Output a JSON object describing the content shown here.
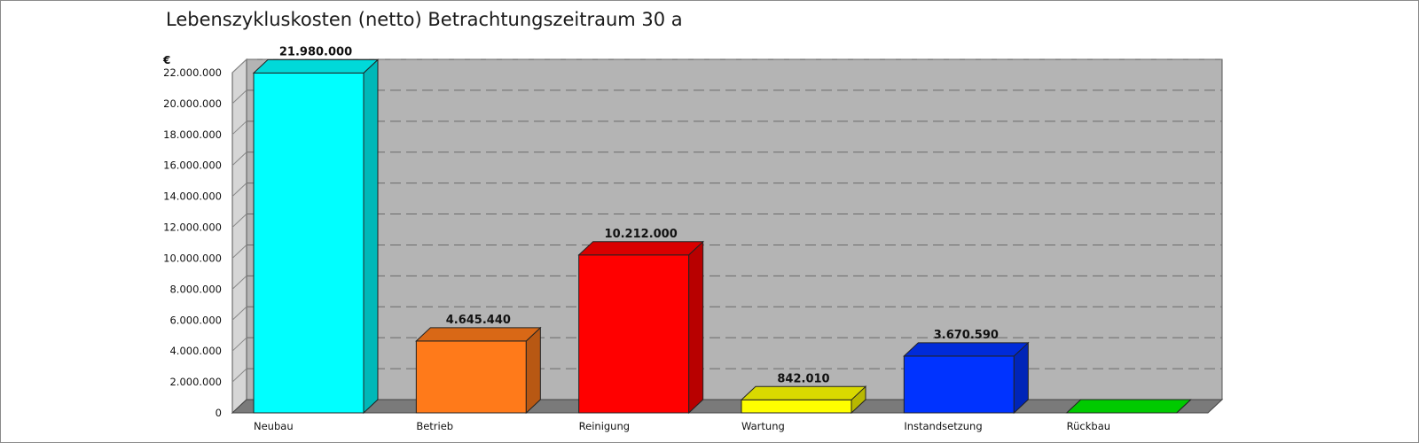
{
  "chart_data": {
    "type": "bar",
    "title": "Lebenszykluskosten (netto) Betrachtungszeitraum 30 a",
    "unit_label": "€",
    "categories": [
      "Neubau",
      "Betrieb",
      "Reinigung",
      "Wartung",
      "Instandsetzung",
      "Rückbau"
    ],
    "values": [
      21980000,
      4645440,
      10212000,
      842010,
      3670590,
      0
    ],
    "data_labels": [
      "21.980.000",
      "4.645.440",
      "10.212.000",
      "842.010",
      "3.670.590",
      ""
    ],
    "colors": [
      "#00ffff",
      "#ff7a1a",
      "#ff0000",
      "#ffff00",
      "#0033ff",
      "#00ee00"
    ],
    "y_ticks": [
      "0",
      "2.000.000",
      "4.000.000",
      "6.000.000",
      "8.000.000",
      "10.000.000",
      "12.000.000",
      "14.000.000",
      "16.000.000",
      "18.000.000",
      "20.000.000",
      "22.000.000"
    ],
    "ylim": [
      0,
      22000000
    ],
    "ytick_step": 2000000,
    "grid": true,
    "style": "3d",
    "background": "#b4b4b4"
  }
}
